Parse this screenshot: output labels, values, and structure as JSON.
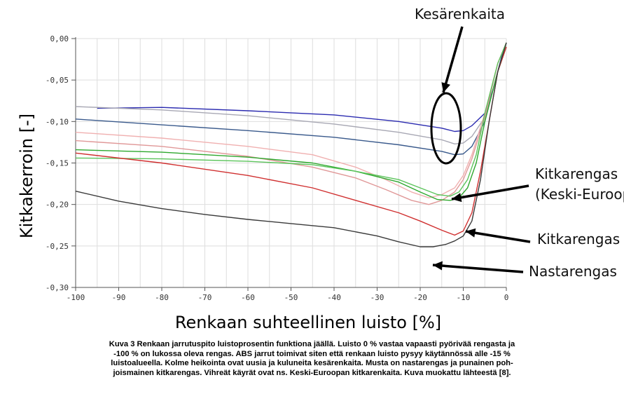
{
  "chart_data": {
    "type": "line",
    "title": "",
    "xlabel": "Renkaan suhteellinen luisto [%]",
    "ylabel": "Kitkakerroin [-]",
    "xlim": [
      -100,
      0
    ],
    "ylim": [
      -0.3,
      0.0
    ],
    "grid": true,
    "x_ticks": [
      "-100",
      "-90",
      "-80",
      "-70",
      "-60",
      "-50",
      "-40",
      "-30",
      "-20",
      "-10",
      "0"
    ],
    "y_ticks": [
      "0,00",
      "-0,05",
      "-0,10",
      "-0,15",
      "-0,20",
      "-0,25",
      "-0,30"
    ],
    "series": [
      {
        "color": "#2b2bb0",
        "x": [
          -95,
          -80,
          -60,
          -40,
          -25,
          -15,
          -12,
          -10,
          -8,
          -5,
          -3,
          -1,
          0
        ],
        "y": [
          -0.084,
          -0.083,
          -0.087,
          -0.092,
          -0.1,
          -0.108,
          -0.112,
          -0.111,
          -0.105,
          -0.09,
          -0.06,
          -0.02,
          -0.005
        ]
      },
      {
        "color": "#a8a8b4",
        "x": [
          -100,
          -80,
          -60,
          -40,
          -25,
          -15,
          -12,
          -10,
          -8,
          -5,
          -3,
          -1,
          0
        ],
        "y": [
          -0.082,
          -0.086,
          -0.093,
          -0.103,
          -0.113,
          -0.122,
          -0.127,
          -0.126,
          -0.118,
          -0.095,
          -0.06,
          -0.02,
          -0.005
        ]
      },
      {
        "color": "#3a5a8c",
        "x": [
          -100,
          -80,
          -60,
          -40,
          -25,
          -15,
          -12,
          -10,
          -8,
          -5,
          -3,
          -1,
          0
        ],
        "y": [
          -0.097,
          -0.104,
          -0.111,
          -0.119,
          -0.128,
          -0.136,
          -0.14,
          -0.139,
          -0.13,
          -0.1,
          -0.06,
          -0.02,
          -0.005
        ]
      },
      {
        "color": "#f0b0b0",
        "x": [
          -100,
          -80,
          -60,
          -45,
          -35,
          -28,
          -22,
          -18,
          -15,
          -12,
          -10,
          -8,
          -5,
          -2,
          0
        ],
        "y": [
          -0.113,
          -0.12,
          -0.13,
          -0.14,
          -0.155,
          -0.17,
          -0.185,
          -0.192,
          -0.188,
          -0.18,
          -0.165,
          -0.14,
          -0.09,
          -0.03,
          -0.005
        ]
      },
      {
        "color": "#e09898",
        "x": [
          -100,
          -80,
          -60,
          -45,
          -35,
          -28,
          -22,
          -18,
          -15,
          -12,
          -10,
          -8,
          -5,
          -2,
          0
        ],
        "y": [
          -0.123,
          -0.13,
          -0.142,
          -0.155,
          -0.168,
          -0.182,
          -0.195,
          -0.2,
          -0.195,
          -0.185,
          -0.17,
          -0.145,
          -0.095,
          -0.03,
          -0.005
        ]
      },
      {
        "color": "#2ea82e",
        "x": [
          -100,
          -80,
          -60,
          -45,
          -35,
          -25,
          -20,
          -16,
          -13,
          -11,
          -9,
          -7,
          -5,
          -2,
          0
        ],
        "y": [
          -0.134,
          -0.137,
          -0.143,
          -0.15,
          -0.16,
          -0.173,
          -0.185,
          -0.194,
          -0.195,
          -0.192,
          -0.18,
          -0.15,
          -0.1,
          -0.04,
          -0.01
        ]
      },
      {
        "color": "#5cc45c",
        "x": [
          -100,
          -80,
          -60,
          -45,
          -35,
          -25,
          -20,
          -16,
          -13,
          -11,
          -9,
          -7,
          -5,
          -2,
          0
        ],
        "y": [
          -0.144,
          -0.145,
          -0.148,
          -0.152,
          -0.16,
          -0.17,
          -0.18,
          -0.188,
          -0.19,
          -0.185,
          -0.17,
          -0.14,
          -0.09,
          -0.03,
          -0.005
        ]
      },
      {
        "color": "#d03030",
        "x": [
          -100,
          -80,
          -60,
          -45,
          -35,
          -25,
          -20,
          -15,
          -12,
          -10,
          -8,
          -6,
          -4,
          -2,
          0
        ],
        "y": [
          -0.138,
          -0.15,
          -0.165,
          -0.18,
          -0.195,
          -0.21,
          -0.22,
          -0.231,
          -0.237,
          -0.232,
          -0.21,
          -0.16,
          -0.1,
          -0.04,
          -0.01
        ]
      },
      {
        "color": "#3a3a3a",
        "x": [
          -100,
          -90,
          -80,
          -70,
          -60,
          -50,
          -40,
          -30,
          -25,
          -20,
          -17,
          -14,
          -12,
          -10,
          -8,
          -6,
          -4,
          -2,
          0
        ],
        "y": [
          -0.184,
          -0.196,
          -0.205,
          -0.212,
          -0.218,
          -0.223,
          -0.228,
          -0.238,
          -0.245,
          -0.251,
          -0.251,
          -0.248,
          -0.244,
          -0.238,
          -0.22,
          -0.17,
          -0.1,
          -0.04,
          -0.005
        ]
      }
    ],
    "annotations": [
      {
        "text": "Kesärenkaita",
        "target": [
          -13,
          -0.125
        ]
      },
      {
        "text": "Kitkarengas",
        "text2": "(Keski-Euroop",
        "target": [
          -13,
          -0.195
        ]
      },
      {
        "text": "Kitkarengas",
        "target": [
          -10,
          -0.236
        ]
      },
      {
        "text": "Nastarengas",
        "target": [
          -17,
          -0.25
        ]
      }
    ]
  },
  "caption": [
    "Kuva 3 Renkaan jarrutuspito luistoprosentin funktiona jäällä. Luisto 0 % vastaa vapaasti pyörivää rengasta ja",
    "-100 % on lukossa oleva rengas. ABS jarrut toimivat siten että renkaan luisto pysyy käytännössä alle -15 %",
    "luistoalueella. Kolme heikointa ovat uusia ja kuluneita kesärenkaita. Musta on nastarengas ja punainen poh-",
    "joismainen kitkarengas. Vihreät käyrät ovat ns. Keski-Euroopan kitkarenkaita. Kuva muokattu lähteestä [8]."
  ]
}
